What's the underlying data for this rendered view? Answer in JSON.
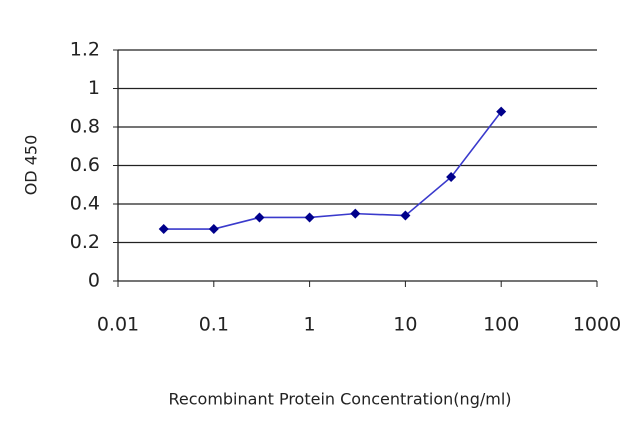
{
  "chart_data": {
    "type": "line",
    "x_label": "Recombinant Protein Concentration(ng/ml)",
    "y_label": "OD 450",
    "x": [
      0.03,
      0.1,
      0.3,
      1,
      3,
      10,
      30,
      100
    ],
    "series": [
      {
        "color": "#3a3acc",
        "marker_color": "#00008b",
        "values": [
          0.27,
          0.27,
          0.33,
          0.33,
          0.35,
          0.34,
          0.54,
          0.88
        ]
      }
    ],
    "xlim": [
      0.01,
      1000
    ],
    "xticks": [
      0.01,
      0.1,
      1,
      10,
      100,
      1000
    ],
    "xscale": "log",
    "ylim": [
      0,
      1.2
    ],
    "yticks": [
      0,
      0.2,
      0.4,
      0.6,
      0.8,
      1,
      1.2
    ],
    "grid": true
  }
}
